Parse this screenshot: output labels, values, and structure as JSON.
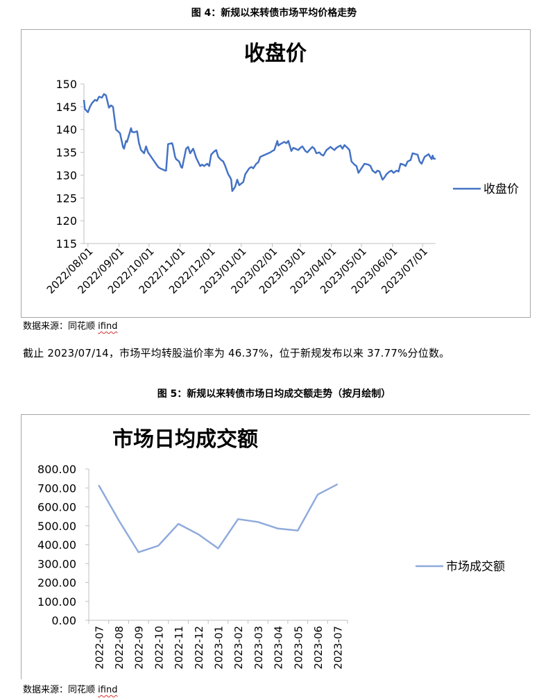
{
  "figure4": {
    "caption": "图 4：新规以来转债市场平均价格走势",
    "source_label": "数据来源：",
    "source_name": "同花顺",
    "source_tool": "ifind",
    "chart_data": {
      "type": "line",
      "title": "收盘价",
      "xlabel": "",
      "ylabel": "",
      "ylim": [
        115,
        150
      ],
      "y_ticks": [
        115,
        120,
        125,
        130,
        135,
        140,
        145,
        150
      ],
      "x_range": [
        "2022-07-28",
        "2023-07-14"
      ],
      "x_ticks": [
        "2022/08/01",
        "2022/09/01",
        "2022/10/01",
        "2022/11/01",
        "2022/12/01",
        "2023/01/01",
        "2023/02/01",
        "2023/03/01",
        "2023/04/01",
        "2023/05/01",
        "2023/06/01",
        "2023/07/01"
      ],
      "legend_position": "right",
      "grid": false,
      "color": "#4472c4",
      "series": [
        {
          "name": "收盘价",
          "points": [
            [
              "2022-07-28",
              146.5
            ],
            [
              "2022-07-29",
              144.5
            ],
            [
              "2022-08-01",
              143.8
            ],
            [
              "2022-08-03",
              145.0
            ],
            [
              "2022-08-05",
              145.8
            ],
            [
              "2022-08-08",
              146.5
            ],
            [
              "2022-08-10",
              146.3
            ],
            [
              "2022-08-12",
              147.2
            ],
            [
              "2022-08-15",
              147.0
            ],
            [
              "2022-08-17",
              147.8
            ],
            [
              "2022-08-19",
              147.5
            ],
            [
              "2022-08-22",
              144.8
            ],
            [
              "2022-08-24",
              145.3
            ],
            [
              "2022-08-26",
              145.0
            ],
            [
              "2022-08-29",
              140.0
            ],
            [
              "2022-08-31",
              139.6
            ],
            [
              "2022-09-02",
              139.2
            ],
            [
              "2022-09-05",
              136.2
            ],
            [
              "2022-09-06",
              135.8
            ],
            [
              "2022-09-08",
              137.5
            ],
            [
              "2022-09-09",
              137.3
            ],
            [
              "2022-09-13",
              140.3
            ],
            [
              "2022-09-14",
              139.5
            ],
            [
              "2022-09-16",
              139.4
            ],
            [
              "2022-09-19",
              139.6
            ],
            [
              "2022-09-21",
              137.0
            ],
            [
              "2022-09-23",
              135.5
            ],
            [
              "2022-09-26",
              134.8
            ],
            [
              "2022-09-28",
              136.3
            ],
            [
              "2022-09-30",
              135.0
            ],
            [
              "2022-10-10",
              131.8
            ],
            [
              "2022-10-12",
              131.5
            ],
            [
              "2022-10-14",
              131.3
            ],
            [
              "2022-10-17",
              131.0
            ],
            [
              "2022-10-18",
              131.0
            ],
            [
              "2022-10-20",
              136.8
            ],
            [
              "2022-10-24",
              137.0
            ],
            [
              "2022-10-25",
              136.2
            ],
            [
              "2022-10-27",
              134.0
            ],
            [
              "2022-10-28",
              133.5
            ],
            [
              "2022-10-31",
              133.0
            ],
            [
              "2022-11-02",
              131.8
            ],
            [
              "2022-11-03",
              131.6
            ],
            [
              "2022-11-07",
              135.8
            ],
            [
              "2022-11-09",
              136.2
            ],
            [
              "2022-11-11",
              134.8
            ],
            [
              "2022-11-14",
              135.8
            ],
            [
              "2022-11-15",
              135.2
            ],
            [
              "2022-11-17",
              133.8
            ],
            [
              "2022-11-21",
              132.0
            ],
            [
              "2022-11-23",
              132.3
            ],
            [
              "2022-11-25",
              132.0
            ],
            [
              "2022-11-28",
              132.5
            ],
            [
              "2022-11-30",
              132.0
            ],
            [
              "2022-12-02",
              134.5
            ],
            [
              "2022-12-05",
              135.2
            ],
            [
              "2022-12-07",
              135.5
            ],
            [
              "2022-12-09",
              134.0
            ],
            [
              "2022-12-12",
              133.3
            ],
            [
              "2022-12-14",
              133.0
            ],
            [
              "2022-12-16",
              132.0
            ],
            [
              "2022-12-19",
              130.2
            ],
            [
              "2022-12-21",
              129.5
            ],
            [
              "2022-12-22",
              129.0
            ],
            [
              "2022-12-23",
              126.5
            ],
            [
              "2022-12-26",
              127.5
            ],
            [
              "2022-12-28",
              129.0
            ],
            [
              "2022-12-30",
              127.8
            ],
            [
              "2023-01-03",
              128.5
            ],
            [
              "2023-01-05",
              130.2
            ],
            [
              "2023-01-09",
              131.5
            ],
            [
              "2023-01-11",
              131.8
            ],
            [
              "2023-01-13",
              131.5
            ],
            [
              "2023-01-16",
              132.5
            ],
            [
              "2023-01-18",
              132.8
            ],
            [
              "2023-01-20",
              134.0
            ],
            [
              "2023-01-30",
              135.0
            ],
            [
              "2023-02-01",
              135.3
            ],
            [
              "2023-02-03",
              135.5
            ],
            [
              "2023-02-06",
              137.5
            ],
            [
              "2023-02-07",
              136.5
            ],
            [
              "2023-02-09",
              136.8
            ],
            [
              "2023-02-13",
              137.3
            ],
            [
              "2023-02-15",
              137.0
            ],
            [
              "2023-02-17",
              137.5
            ],
            [
              "2023-02-20",
              135.3
            ],
            [
              "2023-02-22",
              136.0
            ],
            [
              "2023-02-24",
              135.8
            ],
            [
              "2023-02-27",
              135.5
            ],
            [
              "2023-03-01",
              136.0
            ],
            [
              "2023-03-03",
              136.3
            ],
            [
              "2023-03-06",
              135.3
            ],
            [
              "2023-03-08",
              135.0
            ],
            [
              "2023-03-10",
              135.5
            ],
            [
              "2023-03-13",
              136.2
            ],
            [
              "2023-03-15",
              135.8
            ],
            [
              "2023-03-17",
              134.8
            ],
            [
              "2023-03-20",
              135.0
            ],
            [
              "2023-03-22",
              134.5
            ],
            [
              "2023-03-24",
              134.3
            ],
            [
              "2023-03-27",
              135.5
            ],
            [
              "2023-03-29",
              135.8
            ],
            [
              "2023-03-31",
              136.2
            ],
            [
              "2023-04-04",
              135.5
            ],
            [
              "2023-04-06",
              136.0
            ],
            [
              "2023-04-10",
              136.5
            ],
            [
              "2023-04-12",
              135.8
            ],
            [
              "2023-04-14",
              136.6
            ],
            [
              "2023-04-17",
              136.0
            ],
            [
              "2023-04-19",
              135.5
            ],
            [
              "2023-04-21",
              133.0
            ],
            [
              "2023-04-24",
              132.3
            ],
            [
              "2023-04-26",
              132.0
            ],
            [
              "2023-04-28",
              130.5
            ],
            [
              "2023-05-04",
              132.5
            ],
            [
              "2023-05-08",
              132.3
            ],
            [
              "2023-05-10",
              132.0
            ],
            [
              "2023-05-12",
              131.0
            ],
            [
              "2023-05-15",
              130.5
            ],
            [
              "2023-05-17",
              131.0
            ],
            [
              "2023-05-19",
              130.8
            ],
            [
              "2023-05-22",
              129.0
            ],
            [
              "2023-05-24",
              129.5
            ],
            [
              "2023-05-26",
              130.2
            ],
            [
              "2023-05-29",
              130.8
            ],
            [
              "2023-05-31",
              131.0
            ],
            [
              "2023-06-02",
              130.5
            ],
            [
              "2023-06-05",
              131.0
            ],
            [
              "2023-06-07",
              130.8
            ],
            [
              "2023-06-09",
              132.5
            ],
            [
              "2023-06-12",
              132.3
            ],
            [
              "2023-06-14",
              132.0
            ],
            [
              "2023-06-16",
              133.0
            ],
            [
              "2023-06-19",
              133.3
            ],
            [
              "2023-06-21",
              134.8
            ],
            [
              "2023-06-26",
              134.5
            ],
            [
              "2023-06-28",
              133.0
            ],
            [
              "2023-06-30",
              132.5
            ],
            [
              "2023-07-03",
              134.0
            ],
            [
              "2023-07-05",
              134.3
            ],
            [
              "2023-07-07",
              134.6
            ],
            [
              "2023-07-10",
              133.5
            ],
            [
              "2023-07-11",
              134.3
            ],
            [
              "2023-07-12",
              133.6
            ],
            [
              "2023-07-14",
              133.6
            ]
          ]
        }
      ]
    }
  },
  "paragraph": "截止 2023/07/14，市场平均转股溢价率为 46.37%，位于新规发布以来 37.77%分位数。",
  "figure5": {
    "caption": "图 5：新规以来转债市场日均成交额走势（按月绘制）",
    "source_label": "数据来源：",
    "source_name": "同花顺",
    "source_tool": "ifind",
    "chart_data": {
      "type": "line",
      "title": "市场日均成交额",
      "xlabel": "",
      "ylabel": "",
      "ylim": [
        0,
        800
      ],
      "y_ticks": [
        "0.00",
        "100.00",
        "200.00",
        "300.00",
        "400.00",
        "500.00",
        "600.00",
        "700.00",
        "800.00"
      ],
      "categories": [
        "2022-07",
        "2022-08",
        "2022-09",
        "2022-10",
        "2022-11",
        "2022-12",
        "2023-01",
        "2023-02",
        "2023-03",
        "2023-04",
        "2023-05",
        "2023-06",
        "2023-07"
      ],
      "legend_position": "right",
      "grid": false,
      "color": "#8faadc",
      "series": [
        {
          "name": "市场成交额",
          "values": [
            715,
            530,
            360,
            395,
            510,
            455,
            380,
            535,
            520,
            485,
            475,
            665,
            720
          ]
        }
      ]
    }
  }
}
